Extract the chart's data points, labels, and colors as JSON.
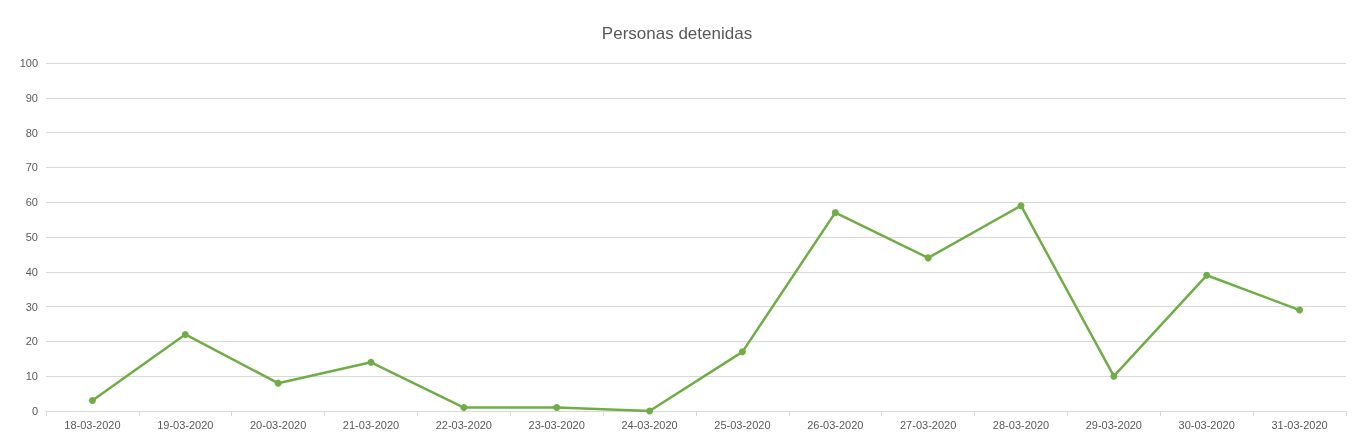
{
  "chart_data": {
    "type": "line",
    "title": "Personas detenidas",
    "categories": [
      "18-03-2020",
      "19-03-2020",
      "20-03-2020",
      "21-03-2020",
      "22-03-2020",
      "23-03-2020",
      "24-03-2020",
      "25-03-2020",
      "26-03-2020",
      "27-03-2020",
      "28-03-2020",
      "29-03-2020",
      "30-03-2020",
      "31-03-2020"
    ],
    "series": [
      {
        "color": "#70ad47",
        "values": [
          3,
          22,
          8,
          14,
          1,
          1,
          0,
          17,
          57,
          44,
          59,
          10,
          39,
          29
        ]
      }
    ],
    "ylim": [
      0,
      100
    ],
    "yticks": [
      0,
      10,
      20,
      30,
      40,
      50,
      60,
      70,
      80,
      90,
      100
    ],
    "grid": "y",
    "marker": "circle",
    "line_style": "solid"
  }
}
